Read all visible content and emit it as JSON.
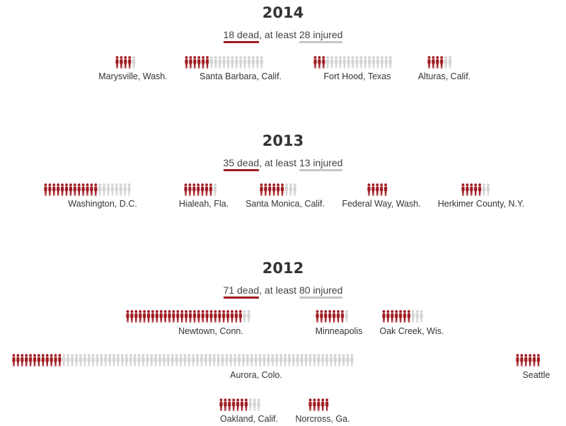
{
  "colors": {
    "dead": "#a01c22",
    "injured": "#d3d3d3"
  },
  "years": [
    {
      "year": "2014",
      "dead_count": "18",
      "dead_word": "dead",
      "mid": ", at least ",
      "injured_count": "28",
      "injured_word": "injured",
      "events": [
        {
          "location": "Marysville, Wash.",
          "dead": 4,
          "injured": 1
        },
        {
          "location": "Santa Barbara, Calif.",
          "dead": 6,
          "injured": 13
        },
        {
          "location": "Fort Hood, Texas",
          "dead": 3,
          "injured": 16
        },
        {
          "location": "Alturas, Calif.",
          "dead": 4,
          "injured": 2
        }
      ]
    },
    {
      "year": "2013",
      "dead_count": "35",
      "dead_word": "dead",
      "mid": ", at least ",
      "injured_count": "13",
      "injured_word": "injured",
      "events": [
        {
          "location": "Washington, D.C.",
          "dead": 13,
          "injured": 8
        },
        {
          "location": "Hialeah, Fla.",
          "dead": 7,
          "injured": 1
        },
        {
          "location": "Santa Monica, Calif.",
          "dead": 6,
          "injured": 3
        },
        {
          "location": "Federal Way, Wash.",
          "dead": 5,
          "injured": 0
        },
        {
          "location": "Herkimer County, N.Y.",
          "dead": 5,
          "injured": 2
        }
      ]
    },
    {
      "year": "2012",
      "dead_count": "71",
      "dead_word": "dead",
      "mid": ", at least ",
      "injured_count": "80",
      "injured_word": "injured",
      "events": [
        {
          "location": "Newtown, Conn.",
          "dead": 28,
          "injured": 2
        },
        {
          "location": "Minneapolis",
          "dead": 7,
          "injured": 1
        },
        {
          "location": "Oak Creek, Wis.",
          "dead": 7,
          "injured": 3
        },
        {
          "location": "Aurora, Colo.",
          "dead": 12,
          "injured": 70
        },
        {
          "location": "Seattle",
          "dead": 6,
          "injured": 0
        },
        {
          "location": "Oakland, Calif.",
          "dead": 7,
          "injured": 3
        },
        {
          "location": "Norcross, Ga.",
          "dead": 5,
          "injured": 0
        }
      ]
    }
  ]
}
